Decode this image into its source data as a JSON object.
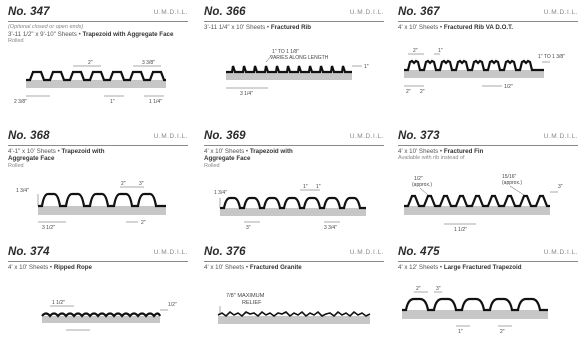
{
  "colors": {
    "profile": "#111111",
    "base": "#c7c7c7",
    "rule": "#8a8a8a",
    "code": "#888888"
  },
  "cells": [
    {
      "number": "No. 347",
      "code": "U.M.D.I.L.",
      "note_top": "(Optional closed or open ends)",
      "spec": "3'-11 1/2\" x 9'-10\" Sheets • ",
      "name": "Trapezoid with Aggregate Face",
      "note": "Rolled",
      "labels": [
        "2\"",
        "3 3/8\"",
        "2 3/8\"",
        "1\"",
        "1 1/4\""
      ]
    },
    {
      "number": "No. 366",
      "code": "U.M.D.I.L.",
      "spec": "3'-11 1/4\" x 10' Sheets • ",
      "name": "Fractured Rib",
      "labels": [
        "1\" TO 1 1/8\"",
        "VARIES ALONG LENGTH",
        "1\"",
        "3 1/4\""
      ]
    },
    {
      "number": "No. 367",
      "code": "U.M.D.I.L.",
      "spec": "4' x 10' Sheets • ",
      "name": "Fractured Rib VA D.O.T.",
      "labels": [
        "2\"",
        "1\"",
        "1\" TO 1 3/8\"",
        "2\"",
        "2\"",
        "1/2\""
      ]
    },
    {
      "number": "No. 368",
      "code": "U.M.D.I.L.",
      "spec": "4'-1\" x 10' Sheets • ",
      "name": "Trapezoid with Aggregate Face",
      "note": "Rolled",
      "labels": [
        "1 3/4\"",
        "2\"",
        "3\"",
        "3 1/2\"",
        "2\""
      ]
    },
    {
      "number": "No. 369",
      "code": "U.M.D.I.L.",
      "spec": "4' x 10' Sheets • ",
      "name": "Trapezoid with Aggregate Face",
      "note": "Rolled",
      "labels": [
        "1 3/4\"",
        "1\"",
        "1\"",
        "3\"",
        "3 3/4\""
      ]
    },
    {
      "number": "No. 373",
      "code": "U.M.D.I.L.",
      "spec": "4' x 10' Sheets • ",
      "name": "Fractured Fin",
      "note": "Available with rib instead of",
      "labels": [
        "1/2\"",
        "(approx.)",
        "15/16\"",
        "(approx.)",
        "3\"",
        "1 1/2\""
      ]
    },
    {
      "number": "No. 374",
      "code": "U.M.D.I.L.",
      "spec": "4' x 10' Sheets • ",
      "name": "Ripped Rope",
      "labels": [
        "1 1/2\"",
        "1/2\""
      ]
    },
    {
      "number": "No. 376",
      "code": "U.M.D.I.L.",
      "spec": "4' x 10' Sheets • ",
      "name": "Fractured Granite",
      "labels": [
        "7/8\" MAXIMUM",
        "RELIEF"
      ]
    },
    {
      "number": "No. 475",
      "code": "U.M.D.I.L.",
      "spec": "4' x 12' Sheets • ",
      "name": "Large Fractured Trapezoid",
      "labels": [
        "2\"",
        "3\"",
        "1\"",
        "2\""
      ]
    }
  ]
}
